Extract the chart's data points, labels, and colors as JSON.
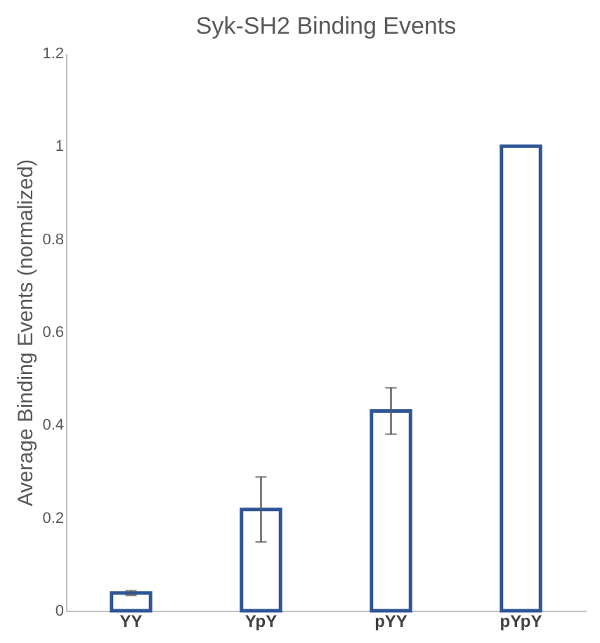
{
  "chart_data": {
    "type": "bar",
    "title": "Syk-SH2 Binding Events",
    "ylabel": "Average Binding Events (normalized)",
    "categories": [
      "YY",
      "YpY",
      "pYY",
      "pYpY"
    ],
    "values": [
      0.038,
      0.218,
      0.43,
      1.0
    ],
    "errors": [
      0.005,
      0.07,
      0.05,
      null
    ],
    "color": "#2f5597",
    "ylim": [
      0,
      1.2
    ],
    "yticks": [
      0,
      0.2,
      0.4,
      0.6,
      0.8,
      1,
      1.2
    ],
    "grid": false
  }
}
